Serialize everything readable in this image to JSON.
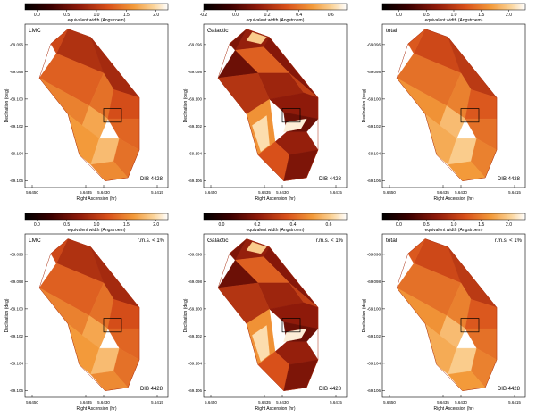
{
  "figure": {
    "panels": [
      {
        "label": "LMC",
        "annotation": "",
        "tag": "DIB 4428",
        "colorbar": {
          "ticks": [
            0.0,
            0.5,
            1.0,
            1.5,
            2.0
          ],
          "tick_labels": [
            "0.0",
            "0.5",
            "1.0",
            "1.5",
            "2.0"
          ],
          "range": [
            -0.2,
            2.2
          ],
          "label": "equivalent width (Angstroem)"
        }
      },
      {
        "label": "Galactic",
        "annotation": "",
        "tag": "DIB 4428",
        "colorbar": {
          "ticks": [
            -0.2,
            0.0,
            0.2,
            0.4,
            0.6
          ],
          "tick_labels": [
            "-0.2",
            "0.0",
            "0.2",
            "0.4",
            "0.6"
          ],
          "range": [
            -0.2,
            0.7
          ],
          "label": "equivalent width (Angstroem)"
        }
      },
      {
        "label": "total",
        "annotation": "",
        "tag": "DIB 4428",
        "colorbar": {
          "ticks": [
            0.0,
            0.5,
            1.0,
            1.5,
            2.0
          ],
          "tick_labels": [
            "0.0",
            "0.5",
            "1.0",
            "1.5",
            "2.0"
          ],
          "range": [
            -0.3,
            2.3
          ],
          "label": "equivalent width (Angstroem)"
        }
      },
      {
        "label": "LMC",
        "annotation": "r.m.s. < 1%",
        "tag": "DIB 4428",
        "colorbar": {
          "ticks": [
            0.0,
            0.5,
            1.0,
            1.5,
            2.0
          ],
          "tick_labels": [
            "0.0",
            "0.5",
            "1.0",
            "1.5",
            "2.0"
          ],
          "range": [
            -0.2,
            2.2
          ],
          "label": "equivalent width (Angstroem)"
        }
      },
      {
        "label": "Galactic",
        "annotation": "r.m.s. < 1%",
        "tag": "DIB 4428",
        "colorbar": {
          "ticks": [
            0.0,
            0.2,
            0.4,
            0.6
          ],
          "tick_labels": [
            "0.0",
            "0.2",
            "0.4",
            "0.6"
          ],
          "range": [
            -0.1,
            0.7
          ],
          "label": "equivalent width (Angstroem)"
        }
      },
      {
        "label": "total",
        "annotation": "r.m.s. < 1%",
        "tag": "DIB 4428",
        "colorbar": {
          "ticks": [
            0.0,
            0.5,
            1.0,
            1.5,
            2.0
          ],
          "tick_labels": [
            "0.0",
            "0.5",
            "1.0",
            "1.5",
            "2.0"
          ],
          "range": [
            -0.3,
            2.3
          ],
          "label": "equivalent width (Angstroem)"
        }
      }
    ]
  },
  "chart_data": [
    {
      "type": "heatmap",
      "colormap": "black-red-orange-white",
      "xlabel": "Right Ascension (hr)",
      "ylabel": "Declination (deg)",
      "x_ticks": [
        5.645,
        5.6435,
        5.643,
        5.6415
      ],
      "x_tick_labels": [
        "5.6450",
        "5.6435",
        "5.6430",
        "5.6415"
      ],
      "y_ticks": [
        -69.096,
        -69.098,
        -69.1,
        -69.102,
        -69.104,
        -69.106
      ],
      "y_tick_labels": [
        "-69.096",
        "-69.098",
        "-69.100",
        "-69.102",
        "-69.104",
        "-69.106"
      ],
      "xlim": [
        5.6452,
        5.6412
      ],
      "ylim": [
        -69.1065,
        -69.0945
      ],
      "invert_x": true,
      "region_box": {
        "ra": [
          5.643,
          5.6425
        ],
        "dec": [
          -69.1007,
          -69.1017
        ]
      }
    }
  ]
}
